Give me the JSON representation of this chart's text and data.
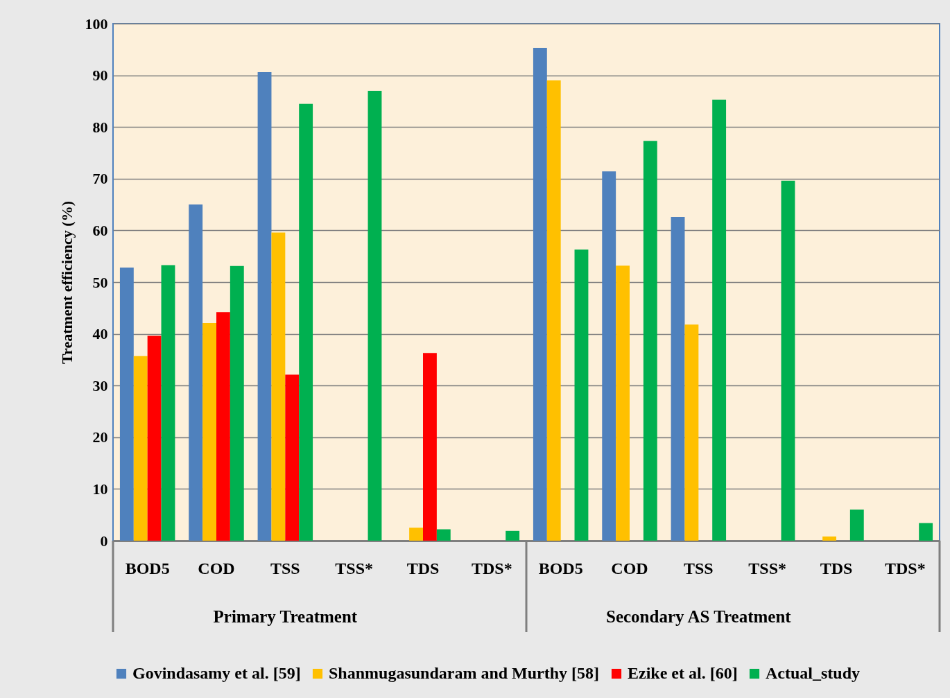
{
  "chart_data": {
    "type": "bar",
    "ylabel": "Treatment efficiency  (%)",
    "categories": [
      "BOD5",
      "COD",
      "TSS",
      "TSS*",
      "TDS",
      "TDS*",
      "BOD5",
      "COD",
      "TSS",
      "TSS*",
      "TDS",
      "TDS*"
    ],
    "annotations": [
      "Primary Treatment",
      "Secondary AS Treatment"
    ],
    "series": [
      {
        "name": "Govindasamy et al. [59]",
        "color": "#4f81bd",
        "values": [
          52.8,
          65,
          90.6,
          null,
          null,
          null,
          95.3,
          71.4,
          62.6,
          null,
          null,
          null
        ]
      },
      {
        "name": "Shanmugasundaram and Murthy [58]",
        "color": "#ffc000",
        "values": [
          35.7,
          42.1,
          59.6,
          null,
          2.5,
          null,
          89,
          53.2,
          41.8,
          null,
          0.8,
          null
        ]
      },
      {
        "name": "Ezike et al. [60]",
        "color": "#ff0000",
        "values": [
          39.6,
          44.2,
          32.1,
          null,
          36.3,
          null,
          null,
          null,
          null,
          null,
          null,
          null
        ]
      },
      {
        "name": "Actual_study",
        "color": "#00b050",
        "values": [
          53.3,
          53.1,
          84.5,
          87,
          2.2,
          1.9,
          56.3,
          77.3,
          85.3,
          69.6,
          6,
          3.4
        ]
      }
    ],
    "ylim": [
      0,
      100
    ],
    "yticks": [
      0,
      10,
      20,
      30,
      40,
      50,
      60,
      70,
      80,
      90,
      100
    ],
    "grid": "y",
    "legend": "bottom"
  }
}
